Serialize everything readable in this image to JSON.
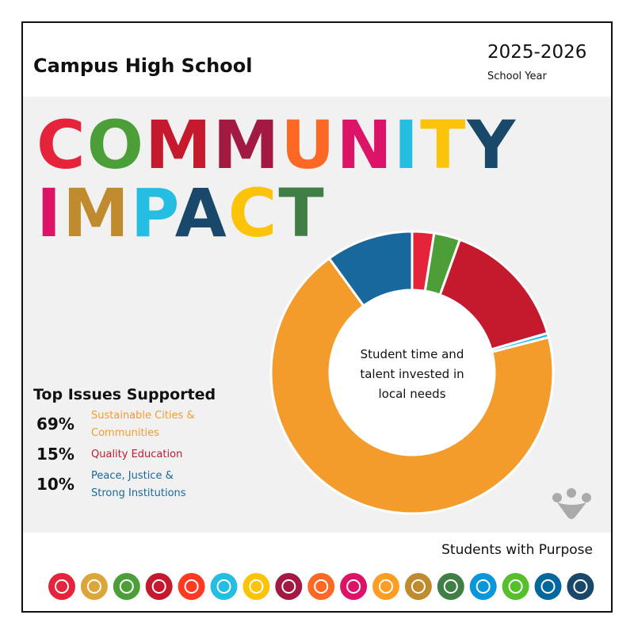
{
  "header": {
    "school": "Campus High School",
    "year": "2025-2026",
    "year_label": "School Year"
  },
  "title_lines": [
    "COMMUNITY",
    "IMPACT"
  ],
  "chart_data": {
    "type": "donut",
    "center_label": "Student time and talent invested in local needs",
    "categories": [
      null,
      null,
      "Quality Education",
      null,
      "Sustainable Cities & Communities",
      "Peace, Justice & Strong Institutions"
    ],
    "values": [
      2.5,
      3,
      15,
      0.5,
      69,
      10
    ],
    "value_labels": [
      null,
      null,
      "15%",
      null,
      "69%",
      "10%"
    ],
    "colors": [
      "#e5243b",
      "#4c9f38",
      "#c5192d",
      "#26bde2",
      "#f39c2c",
      "#19689d"
    ]
  },
  "list_title": "Top Issues Supported",
  "footer": {
    "tagline": "Students with Purpose"
  }
}
